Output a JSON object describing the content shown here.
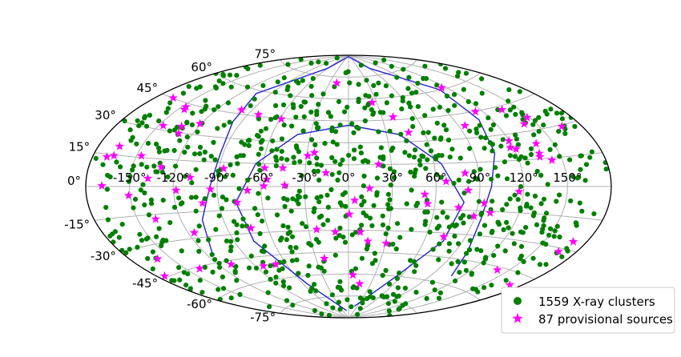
{
  "chart_data": {
    "type": "scatter",
    "projection": "aitoff",
    "grid": true,
    "legend_position": "bottom-right",
    "series": [
      {
        "name": "1559 X-ray clusters",
        "marker": "circle",
        "color": "#007f00"
      },
      {
        "name": "87 provisional sources",
        "marker": "star",
        "color": "#ff00ff"
      }
    ],
    "lon_ticks": [
      -150,
      -120,
      -90,
      -60,
      -30,
      0,
      30,
      60,
      90,
      120,
      150
    ],
    "lon_tick_labels": [
      "-150°",
      "-120°",
      "-90°",
      "-60°",
      "-30°",
      "0°",
      "30°",
      "60°",
      "90°",
      "120°",
      "150°"
    ],
    "lat_ticks": [
      75,
      60,
      45,
      30,
      15,
      0,
      -15,
      -30,
      -45,
      -60,
      -75
    ],
    "lat_tick_labels": [
      "75°",
      "60°",
      "45°",
      "30°",
      "15°",
      "0°",
      "-15°",
      "-30°",
      "-45°",
      "-60°",
      "-75°"
    ],
    "boundary_color": "#2222cc",
    "points_description_note_removed": null
  },
  "legend": {
    "clusters_label": "1559 X-ray clusters",
    "sources_label": "87 provisional sources"
  }
}
